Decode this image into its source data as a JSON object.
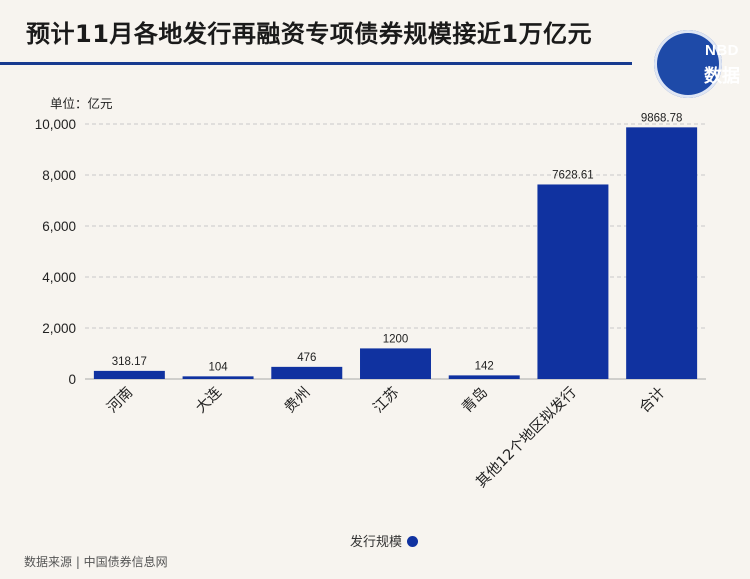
{
  "header": {
    "title": "预计11月各地发行再融资专项债券规模接近1万亿元",
    "logo_line1": "NBD",
    "logo_line2": "数据"
  },
  "unit_label": "单位：亿元",
  "legend_label": "发行规模",
  "source": "数据来源 | 中国债券信息网",
  "colors": {
    "bar": "#1032a0",
    "title_rule": "#173a8f",
    "logo": "#1e4aa8"
  },
  "chart_data": {
    "type": "bar",
    "categories": [
      "河南",
      "大连",
      "贵州",
      "江苏",
      "青岛",
      "其他12个地区拟发行",
      "合计"
    ],
    "series": [
      {
        "name": "发行规模",
        "values": [
          318.17,
          104,
          476,
          1200,
          142,
          7628.61,
          9868.78
        ]
      }
    ],
    "data_labels": [
      "318.17",
      "104",
      "476",
      "1200",
      "142",
      "7628.61",
      "9868.78"
    ],
    "yticks": [
      "0",
      "2,000",
      "4,000",
      "6,000",
      "8,000",
      "10,000"
    ],
    "ylim": [
      0,
      10000
    ],
    "grid": true,
    "legend": "bottom-center"
  }
}
